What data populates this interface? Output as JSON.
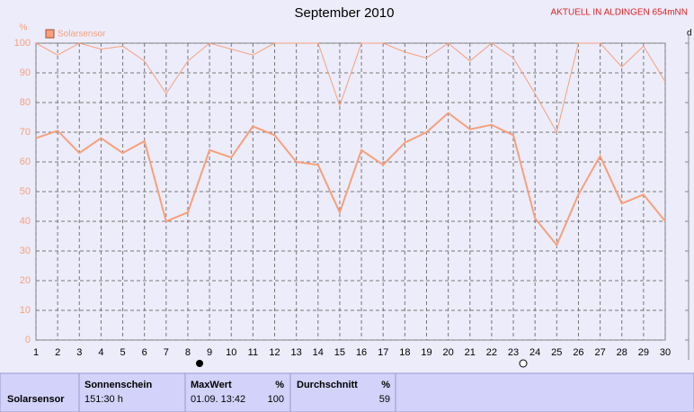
{
  "chart_data": {
    "type": "line",
    "title": "September 2010",
    "annotation": "AKTUELL IN ALDINGEN 654mNN",
    "y_label": "%",
    "x": [
      1,
      2,
      3,
      4,
      5,
      6,
      7,
      8,
      9,
      10,
      11,
      12,
      13,
      14,
      15,
      16,
      17,
      18,
      19,
      20,
      21,
      22,
      23,
      24,
      25,
      26,
      27,
      28,
      29,
      30
    ],
    "xlim": [
      1,
      30
    ],
    "xticks": [
      1,
      2,
      3,
      4,
      5,
      6,
      7,
      8,
      9,
      10,
      11,
      12,
      13,
      14,
      15,
      16,
      17,
      18,
      19,
      20,
      21,
      22,
      23,
      24,
      25,
      26,
      27,
      28,
      29,
      30
    ],
    "ylim": [
      0,
      100
    ],
    "yticks": [
      0,
      10,
      20,
      30,
      40,
      50,
      60,
      70,
      80,
      90,
      100
    ],
    "grid": true,
    "series": [
      {
        "name": "Solarsensor",
        "color": "#f7a07a",
        "values": [
          68,
          70.5,
          63,
          68,
          63,
          67,
          40,
          43,
          64,
          61.5,
          72,
          69,
          60,
          59,
          43,
          64,
          59,
          66.5,
          70,
          76.5,
          71,
          72.5,
          69,
          41,
          32,
          49,
          62,
          46,
          49,
          40
        ]
      },
      {
        "color": "#f7a07a",
        "values": [
          100,
          96,
          100,
          98,
          99,
          94,
          83,
          94,
          100,
          98,
          96,
          100,
          100,
          100,
          79,
          100,
          100,
          97,
          95,
          100,
          94,
          100,
          95,
          83,
          70,
          100,
          100,
          92,
          99,
          87
        ]
      }
    ]
  },
  "table": {
    "row_label": "Solarsensor",
    "cells": [
      {
        "header": "Sonnenschein",
        "value": "151:30 h"
      },
      {
        "header": "MaxWert",
        "unit": "%",
        "date": "01.09. 13:42",
        "value": 100
      },
      {
        "header": "Durchschnitt",
        "unit": "%",
        "value": 59
      }
    ]
  }
}
